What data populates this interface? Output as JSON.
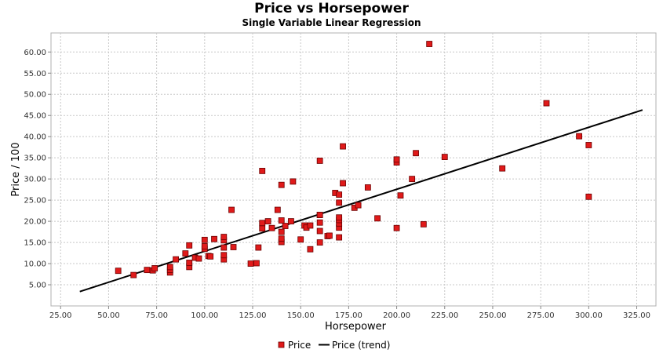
{
  "chart_data": {
    "type": "scatter",
    "title": "Price vs Horsepower",
    "subtitle": "Single Variable Linear Regression",
    "xlabel": "Horsepower",
    "ylabel": "Price / 100",
    "xlim": [
      20,
      335
    ],
    "ylim": [
      0,
      64.5
    ],
    "x_ticks": [
      25,
      50,
      75,
      100,
      125,
      150,
      175,
      200,
      225,
      250,
      275,
      300,
      325
    ],
    "x_tick_labels": [
      "25.00",
      "50.00",
      "75.00",
      "100.00",
      "125.00",
      "150.00",
      "175.00",
      "200.00",
      "225.00",
      "250.00",
      "275.00",
      "300.00",
      "325.00"
    ],
    "y_ticks": [
      5,
      10,
      15,
      20,
      25,
      30,
      35,
      40,
      45,
      50,
      55,
      60
    ],
    "y_tick_labels": [
      "5.00",
      "10.00",
      "15.00",
      "20.00",
      "25.00",
      "30.00",
      "35.00",
      "40.00",
      "45.00",
      "50.00",
      "55.00",
      "60.00"
    ],
    "grid": true,
    "legend_position": "bottom-center",
    "series": [
      {
        "name": "Price",
        "kind": "scatter",
        "color": "#e01a1a",
        "x": [
          55,
          63,
          70,
          73,
          74,
          82,
          82,
          82,
          85,
          90,
          92,
          92,
          92,
          95,
          97,
          100,
          100,
          100,
          102,
          103,
          105,
          110,
          110,
          110,
          110,
          110,
          114,
          115,
          124,
          127,
          128,
          130,
          130,
          130,
          133,
          135,
          138,
          140,
          140,
          140,
          140,
          140,
          142,
          145,
          146,
          150,
          152,
          153,
          155,
          155,
          160,
          160,
          160,
          160,
          160,
          160,
          164,
          165,
          168,
          170,
          170,
          170,
          170,
          170,
          170,
          170,
          172,
          172,
          178,
          180,
          185,
          190,
          200,
          200,
          200,
          202,
          208,
          210,
          214,
          217,
          225,
          255,
          278,
          295,
          300,
          300
        ],
        "y": [
          8.3,
          7.3,
          8.5,
          8.4,
          8.9,
          7.9,
          8.5,
          9.2,
          11.0,
          12.4,
          9.2,
          10.2,
          14.3,
          11.4,
          11.2,
          13.5,
          14.1,
          15.6,
          11.8,
          11.7,
          15.8,
          11.0,
          12.0,
          13.8,
          15.5,
          16.3,
          22.7,
          13.9,
          10.0,
          10.1,
          13.8,
          18.3,
          19.6,
          31.9,
          20.0,
          18.4,
          22.7,
          15.1,
          15.9,
          17.5,
          20.2,
          28.6,
          18.9,
          20.0,
          29.4,
          15.7,
          19.0,
          18.5,
          19.0,
          13.4,
          15.0,
          17.7,
          19.7,
          21.5,
          34.3,
          21.5,
          16.5,
          16.6,
          26.7,
          16.2,
          18.5,
          19.5,
          20.3,
          20.9,
          24.4,
          26.3,
          29.0,
          37.7,
          23.2,
          23.8,
          28.0,
          20.7,
          18.4,
          33.9,
          34.6,
          26.1,
          30.0,
          36.1,
          19.3,
          61.9,
          35.2,
          32.5,
          47.9,
          40.1,
          38.0,
          25.8
        ]
      },
      {
        "name": "Price (trend)",
        "kind": "line",
        "color": "#000000",
        "x": [
          35,
          328
        ],
        "y": [
          3.4,
          46.3
        ]
      }
    ]
  }
}
